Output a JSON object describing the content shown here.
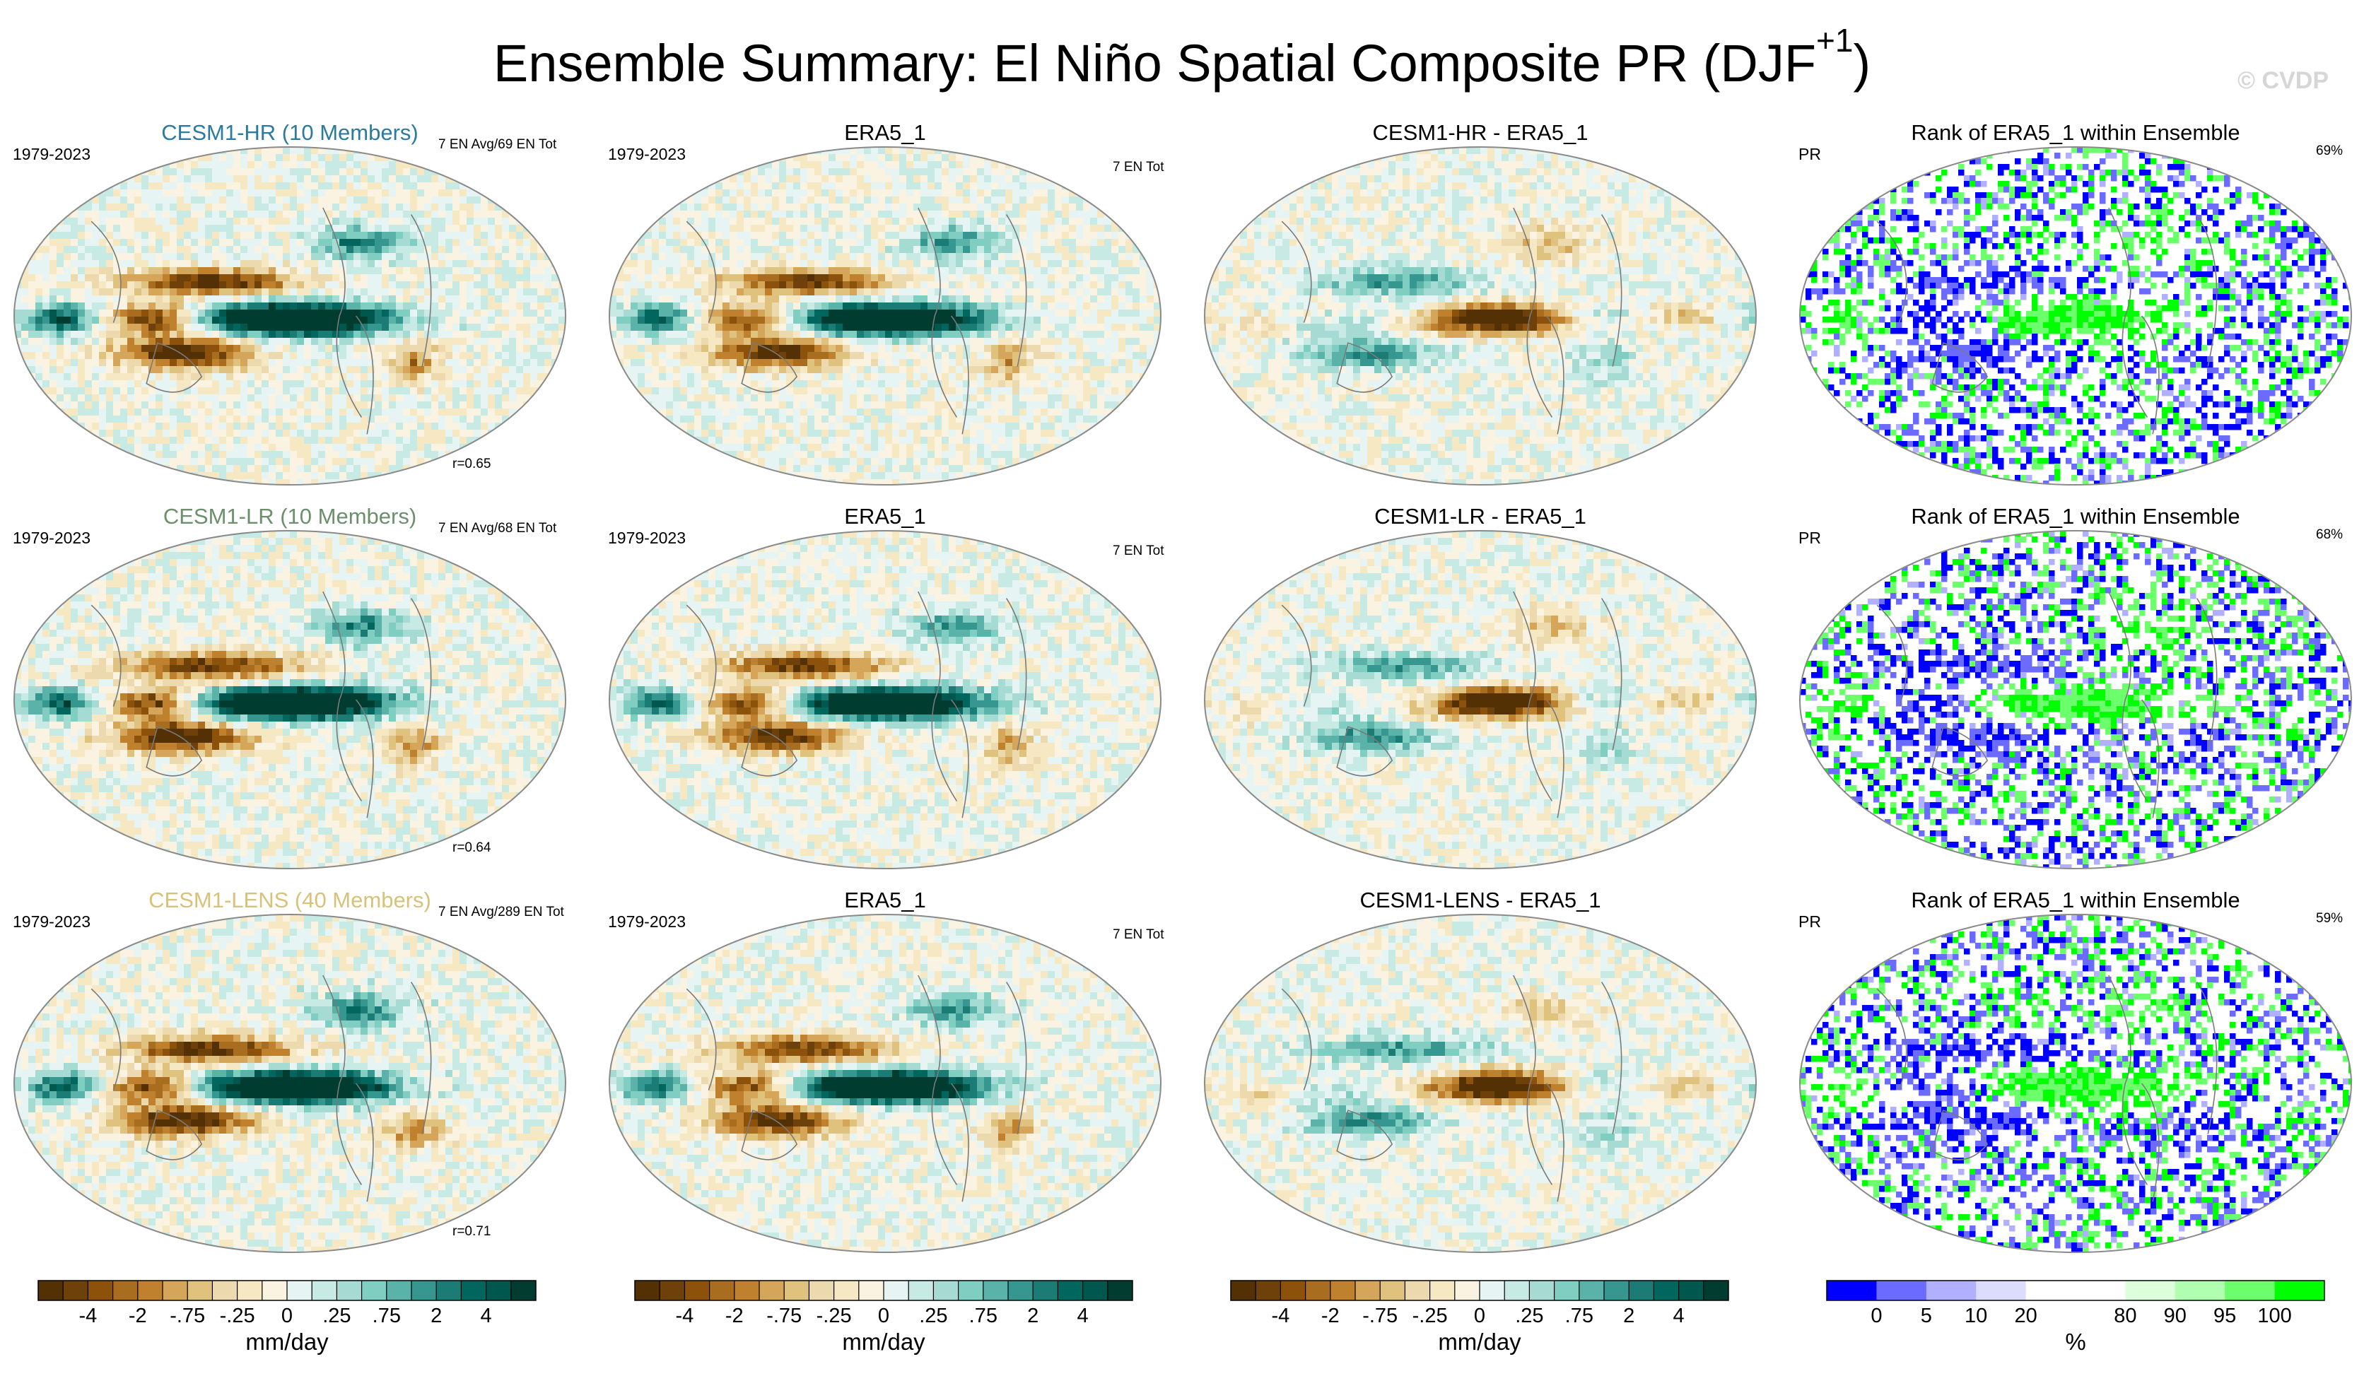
{
  "page": {
    "title_main": "Ensemble Summary: El Niño Spatial Composite PR (DJF",
    "title_sup": "+1",
    "title_end": ")",
    "watermark": "© CVDP"
  },
  "rows": [
    {
      "model_label": "CESM1-HR (10 Members)",
      "model_color": "#2b7aa0",
      "period": "1979-2023",
      "ens_info": "7 EN Avg/69 EN Tot",
      "corr": "r=0.65",
      "obs_label": "ERA5_1",
      "obs_period": "1979-2023",
      "obs_info": "7 EN Tot",
      "diff_label": "CESM1-HR - ERA5_1",
      "rank_title": "Rank of ERA5_1 within Ensemble",
      "rank_var": "PR",
      "rank_pct": "69%"
    },
    {
      "model_label": "CESM1-LR (10 Members)",
      "model_color": "#6c8f6c",
      "period": "1979-2023",
      "ens_info": "7 EN Avg/68 EN Tot",
      "corr": "r=0.64",
      "obs_label": "ERA5_1",
      "obs_period": "1979-2023",
      "obs_info": "7 EN Tot",
      "diff_label": "CESM1-LR - ERA5_1",
      "rank_title": "Rank of ERA5_1 within Ensemble",
      "rank_var": "PR",
      "rank_pct": "68%"
    },
    {
      "model_label": "CESM1-LENS (40 Members)",
      "model_color": "#d8c27a",
      "period": "1979-2023",
      "ens_info": "7 EN Avg/289 EN Tot",
      "corr": "r=0.71",
      "obs_label": "ERA5_1",
      "obs_period": "1979-2023",
      "obs_info": "7 EN Tot",
      "diff_label": "CESM1-LENS - ERA5_1",
      "rank_title": "Rank of ERA5_1 within Ensemble",
      "rank_var": "PR",
      "rank_pct": "59%"
    }
  ],
  "colorbar_main": {
    "unit": "mm/day",
    "ticks": [
      "-4",
      "-2",
      "-.75",
      "-.25",
      "0",
      ".25",
      ".75",
      "2",
      "4"
    ],
    "colors": [
      "#543005",
      "#6e400a",
      "#8c510a",
      "#a86d1e",
      "#bf812d",
      "#d5a65a",
      "#dfc27d",
      "#ecd9ae",
      "#f6e8c3",
      "#fbf3e2",
      "#e6f5f3",
      "#c7eae5",
      "#a5dbd3",
      "#80cdc1",
      "#5ab2a8",
      "#35978f",
      "#1a7c74",
      "#01665e",
      "#00574d",
      "#003c30"
    ]
  },
  "colorbar_rank": {
    "unit": "%",
    "ticks": [
      "0",
      "5",
      "10",
      "20",
      "80",
      "90",
      "95",
      "100"
    ],
    "colors": [
      "#0000ff",
      "#6b6bff",
      "#b0b0ff",
      "#dcdcff",
      "#ffffff",
      "#ffffff",
      "#dcffdc",
      "#b0ffb0",
      "#6bff6b",
      "#00ff00"
    ]
  },
  "chart_data": [
    {
      "type": "heatmap",
      "title": "CESM1-HR (10 Members)",
      "subtitle": "1979-2023",
      "annotation": "r=0.65",
      "colorbar_unit": "mm/day",
      "description_values": {
        "pattern_correlation": 0.65,
        "el_nino_events_avg": 7,
        "el_nino_events_total": 69
      }
    },
    {
      "type": "heatmap",
      "title": "CESM1-LR (10 Members)",
      "subtitle": "1979-2023",
      "annotation": "r=0.64",
      "colorbar_unit": "mm/day",
      "description_values": {
        "pattern_correlation": 0.64,
        "el_nino_events_avg": 7,
        "el_nino_events_total": 68
      }
    },
    {
      "type": "heatmap",
      "title": "CESM1-LENS (40 Members)",
      "subtitle": "1979-2023",
      "annotation": "r=0.71",
      "colorbar_unit": "mm/day",
      "description_values": {
        "pattern_correlation": 0.71,
        "el_nino_events_avg": 7,
        "el_nino_events_total": 289
      }
    },
    {
      "type": "heatmap",
      "title": "Rank of ERA5_1 within Ensemble",
      "colorbar_unit": "%",
      "description_values": {
        "rank_pct_row1": 69,
        "rank_pct_row2": 68,
        "rank_pct_row3": 59
      }
    }
  ]
}
